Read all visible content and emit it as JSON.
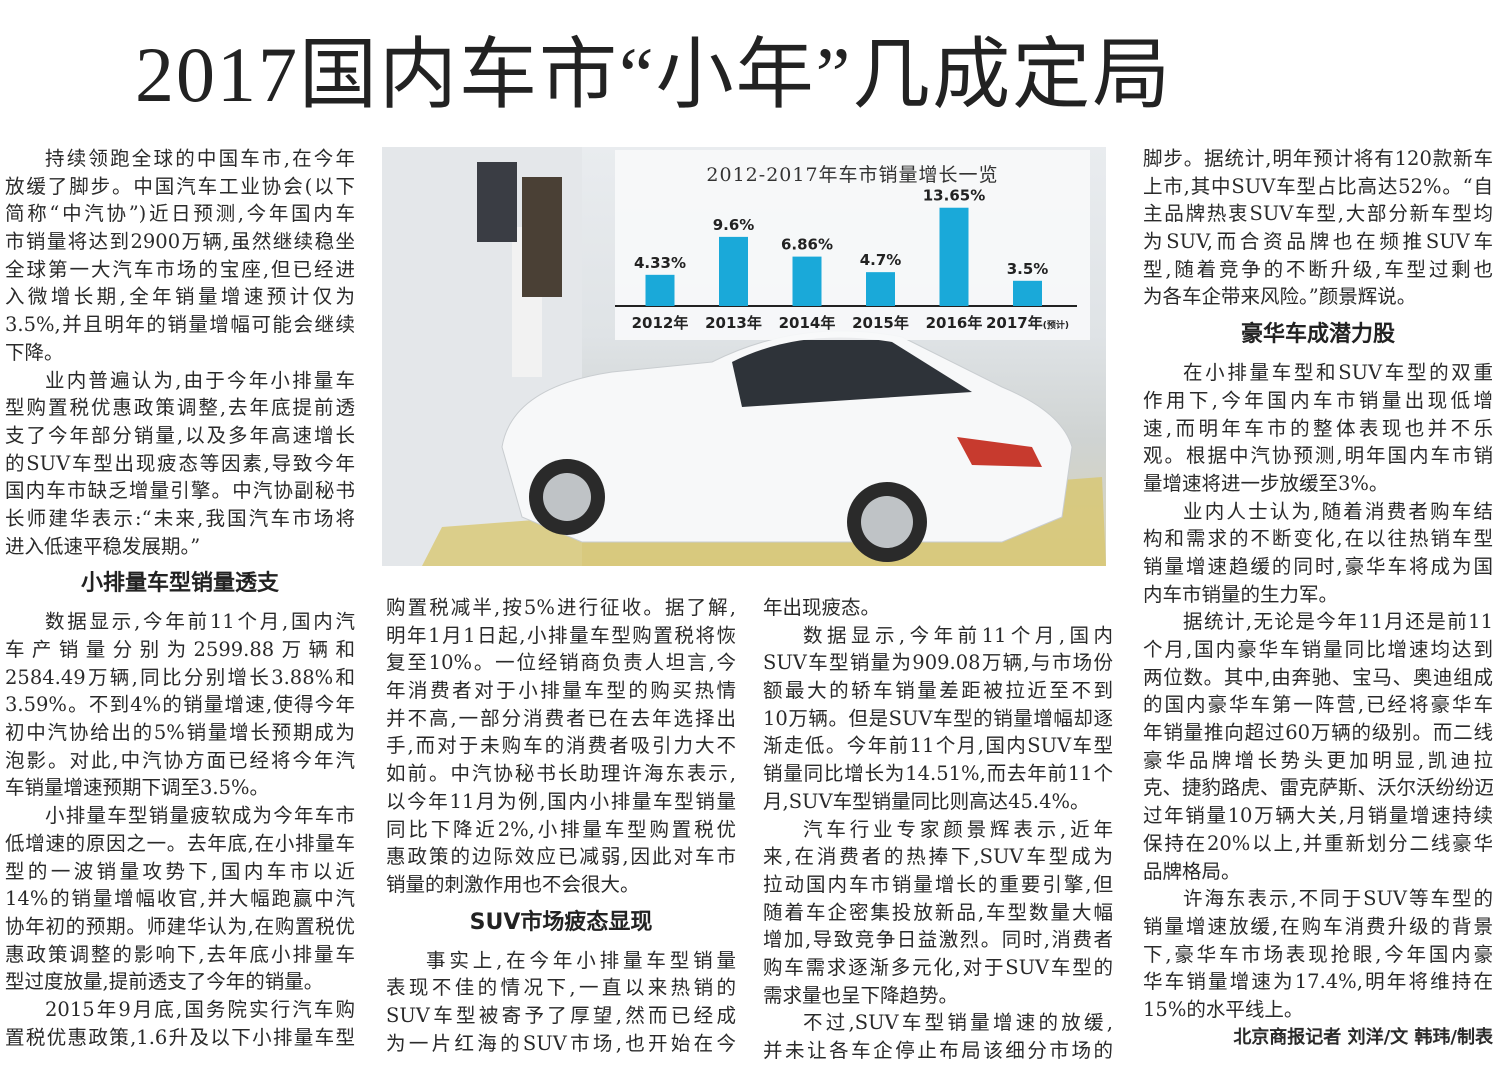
{
  "headline": "2017国内车市“小年”几成定局",
  "columns": [
    {
      "blocks": [
        {
          "type": "p",
          "indent": true,
          "lines": [
            "持续领跑全球的中国车市,在今年",
            "放缓了脚步。中国汽车工业协会(以下",
            "简称“中汽协”)近日预测,今年国内车",
            "市销量将达到2900万辆,虽然继续稳坐",
            "全球第一大汽车市场的宝座,但已经进",
            "入微增长期,全年销量增速预计仅为",
            "3.5%,并且明年的销量增幅可能会继续",
            "下降。"
          ]
        },
        {
          "type": "p",
          "indent": true,
          "lines": [
            "业内普遍认为,由于今年小排量车",
            "型购置税优惠政策调整,去年底提前透",
            "支了今年部分销量,以及多年高速增长",
            "的SUV车型出现疲态等因素,导致今年",
            "国内车市缺乏增量引擎。中汽协副秘书",
            "长师建华表示:“未来,我国汽车市场将",
            "进入低速平稳发展期。”"
          ]
        },
        {
          "type": "h",
          "text": "小排量车型销量透支"
        },
        {
          "type": "p",
          "indent": true,
          "lines": [
            "数据显示,今年前11个月,国内汽",
            "车产销量分别为2599.88万辆和",
            "2584.49万辆,同比分别增长3.88%和",
            "3.59%。不到4%的销量增速,使得今年",
            "初中汽协给出的5%销量增长预期成为",
            "泡影。对此,中汽协方面已经将今年汽",
            "车销量增速预期下调至3.5%。"
          ]
        },
        {
          "type": "p",
          "indent": true,
          "lines": [
            "小排量车型销量疲软成为今年车市",
            "低增速的原因之一。去年底,在小排量车",
            "型的一波销量攻势下,国内车市以近",
            "14%的销量增幅收官,并大幅跑赢中汽",
            "协年初的预期。师建华认为,在购置税优",
            "惠政策调整的影响下,去年底小排量车",
            "型过度放量,提前透支了今年的销量。"
          ]
        },
        {
          "type": "p",
          "indent": true,
          "cont": true,
          "lines": [
            "2015年9月底,国务院实行汽车购",
            "置税优惠政策,1.6升及以下小排量车型"
          ]
        }
      ]
    },
    {
      "blocks": [
        {
          "type": "p",
          "indent": false,
          "lines": [
            "购置税减半,按5%进行征收。据了解,",
            "明年1月1日起,小排量车型购置税将恢",
            "复至10%。一位经销商负责人坦言,今",
            "年消费者对于小排量车型的购买热情",
            "并不高,一部分消费者已在去年选择出",
            "手,而对于未购车的消费者吸引力大不",
            "如前。中汽协秘书长助理许海东表示,",
            "以今年11月为例,国内小排量车型销量",
            "同比下降近2%,小排量车型购置税优",
            "惠政策的边际效应已减弱,因此对车市",
            "销量的刺激作用也不会很大。"
          ]
        },
        {
          "type": "h",
          "text": "SUV市场疲态显现"
        },
        {
          "type": "p",
          "indent": true,
          "cont": true,
          "lines": [
            "事实上,在今年小排量车型销量",
            "表现不佳的情况下,一直以来热销的",
            "SUV车型被寄予了厚望,然而已经成",
            "为一片红海的SUV市场,也开始在今"
          ]
        }
      ]
    },
    {
      "blocks": [
        {
          "type": "p",
          "indent": false,
          "lines": [
            "年出现疲态。"
          ]
        },
        {
          "type": "p",
          "indent": true,
          "lines": [
            "数据显示,今年前11个月,国内",
            "SUV车型销量为909.08万辆,与市场份",
            "额最大的轿车销量差距被拉近至不到",
            "10万辆。但是SUV车型的销量增幅却逐",
            "渐走低。今年前11个月,国内SUV车型",
            "销量同比增长为14.51%,而去年前11个",
            "月,SUV车型销量同比则高达45.4%。"
          ]
        },
        {
          "type": "p",
          "indent": true,
          "lines": [
            "汽车行业专家颜景辉表示,近年",
            "来,在消费者的热捧下,SUV车型成为",
            "拉动国内车市销量增长的重要引擎,但",
            "随着车企密集投放新品,车型数量大幅",
            "增加,导致竞争日益激烈。同时,消费者",
            "购车需求逐渐多元化,对于SUV车型的",
            "需求量也呈下降趋势。"
          ]
        },
        {
          "type": "p",
          "indent": true,
          "cont": true,
          "lines": [
            "不过,SUV车型销量增速的放缓,",
            "并未让各车企停止布局该细分市场的"
          ]
        }
      ]
    },
    {
      "blocks": [
        {
          "type": "p",
          "indent": false,
          "lines": [
            "脚步。据统计,明年预计将有120款新车",
            "上市,其中SUV车型占比高达52%。“自",
            "主品牌热衷SUV车型,大部分新车型均",
            "为SUV,而合资品牌也在频推SUV车",
            "型,随着竞争的不断升级,车型过剩也",
            "为各车企带来风险。”颜景辉说。"
          ]
        },
        {
          "type": "h",
          "text": "豪华车成潜力股"
        },
        {
          "type": "p",
          "indent": true,
          "lines": [
            "在小排量车型和SUV车型的双重",
            "作用下,今年国内车市销量出现低增",
            "速,而明年车市的整体表现也并不乐",
            "观。根据中汽协预测,明年国内车市销",
            "量增速将进一步放缓至3%。"
          ]
        },
        {
          "type": "p",
          "indent": true,
          "lines": [
            "业内人士认为,随着消费者购车结",
            "构和需求的不断变化,在以往热销车型",
            "销量增速趋缓的同时,豪华车将成为国",
            "内车市销量的生力军。"
          ]
        },
        {
          "type": "p",
          "indent": true,
          "lines": [
            "据统计,无论是今年11月还是前11",
            "个月,国内豪华车销量同比增速均达到",
            "两位数。其中,由奔驰、宝马、奥迪组成",
            "的国内豪华车第一阵营,已经将豪华车",
            "年销量推向超过60万辆的级别。而二线",
            "豪华品牌增长势头更加明显,凯迪拉",
            "克、捷豹路虎、雷克萨斯、沃尔沃纷纷迈",
            "过年销量10万辆大关,月销量增速持续",
            "保持在20%以上,并重新划分二线豪华",
            "品牌格局。"
          ]
        },
        {
          "type": "p",
          "indent": true,
          "lines": [
            "许海东表示,不同于SUV等车型的",
            "销量增速放缓,在购车消费升级的背景",
            "下,豪华车市场表现抢眼,今年国内豪",
            "华车销量增速为17.4%,明年将维持在",
            "15%的水平线上。"
          ]
        },
        {
          "type": "byline",
          "text": "北京商报记者 刘洋/文 韩玮/制表"
        }
      ]
    }
  ],
  "chart_data": {
    "type": "bar",
    "title": "2012-2017年车市销量增长一览",
    "categories": [
      "2012年",
      "2013年",
      "2014年",
      "2015年",
      "2016年",
      "2017年"
    ],
    "category_notes": [
      "",
      "",
      "",
      "",
      "",
      "(预计)"
    ],
    "values": [
      4.33,
      9.6,
      6.86,
      4.7,
      13.65,
      3.5
    ],
    "data_labels": [
      "4.33%",
      "9.6%",
      "6.86%",
      "4.7%",
      "13.65%",
      "3.5%"
    ],
    "unit": "%",
    "bar_color": "#1aa9d9",
    "grid": false
  }
}
